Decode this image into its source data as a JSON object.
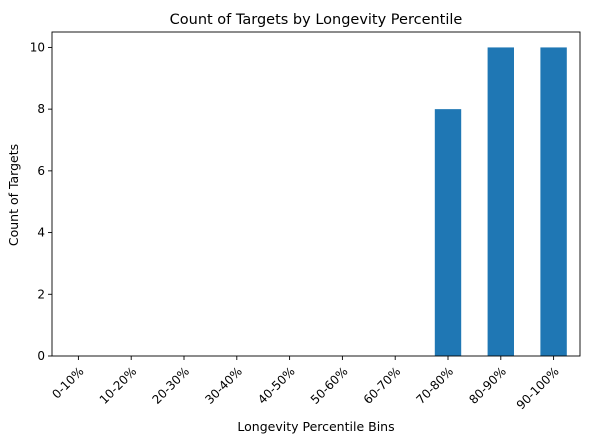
{
  "chart_data": {
    "type": "bar",
    "title": "Count of Targets by Longevity Percentile",
    "xlabel": "Longevity Percentile Bins",
    "ylabel": "Count of Targets",
    "categories": [
      "0-10%",
      "10-20%",
      "20-30%",
      "30-40%",
      "40-50%",
      "50-60%",
      "60-70%",
      "70-80%",
      "80-90%",
      "90-100%"
    ],
    "values": [
      0,
      0,
      0,
      0,
      0,
      0,
      0,
      8,
      10,
      10
    ],
    "ylim": [
      0,
      10.5
    ],
    "yticks": [
      0,
      2,
      4,
      6,
      8,
      10
    ],
    "bar_color": "#1f77b4",
    "grid": false,
    "legend": "none"
  }
}
